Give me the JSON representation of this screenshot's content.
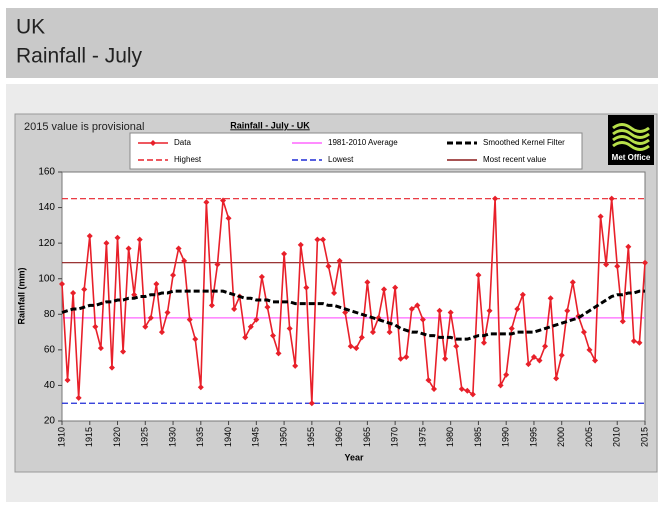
{
  "header": {
    "title": "UK",
    "subtitle": "Rainfall - July"
  },
  "note": "2015 value is provisional",
  "logo": "Met Office",
  "chart_data": {
    "type": "line",
    "title": "Rainfall - July - UK",
    "xlabel": "Year",
    "ylabel": "Rainfall (mm)",
    "x": [
      1910,
      1911,
      1912,
      1913,
      1914,
      1915,
      1916,
      1917,
      1918,
      1919,
      1920,
      1921,
      1922,
      1923,
      1924,
      1925,
      1926,
      1927,
      1928,
      1929,
      1930,
      1931,
      1932,
      1933,
      1934,
      1935,
      1936,
      1937,
      1938,
      1939,
      1940,
      1941,
      1942,
      1943,
      1944,
      1945,
      1946,
      1947,
      1948,
      1949,
      1950,
      1951,
      1952,
      1953,
      1954,
      1955,
      1956,
      1957,
      1958,
      1959,
      1960,
      1961,
      1962,
      1963,
      1964,
      1965,
      1966,
      1967,
      1968,
      1969,
      1970,
      1971,
      1972,
      1973,
      1974,
      1975,
      1976,
      1977,
      1978,
      1979,
      1980,
      1981,
      1982,
      1983,
      1984,
      1985,
      1986,
      1987,
      1988,
      1989,
      1990,
      1991,
      1992,
      1993,
      1994,
      1995,
      1996,
      1997,
      1998,
      1999,
      2000,
      2001,
      2002,
      2003,
      2004,
      2005,
      2006,
      2007,
      2008,
      2009,
      2010,
      2011,
      2012,
      2013,
      2014,
      2015
    ],
    "series": [
      {
        "name": "Data",
        "color": "#e8202a",
        "style": "solid",
        "markers": true,
        "values": [
          97,
          43,
          92,
          33,
          94,
          124,
          73,
          61,
          120,
          50,
          123,
          59,
          117,
          91,
          122,
          73,
          78,
          97,
          70,
          81,
          102,
          117,
          110,
          77,
          66,
          39,
          143,
          85,
          108,
          144,
          134,
          83,
          90,
          67,
          73,
          77,
          101,
          84,
          68,
          58,
          114,
          72,
          51,
          119,
          95,
          30,
          122,
          122,
          107,
          92,
          110,
          81,
          62,
          61,
          67,
          98,
          70,
          78,
          94,
          70,
          95,
          55,
          56,
          83,
          85,
          77,
          43,
          38,
          82,
          55,
          81,
          62,
          38,
          37,
          35,
          102,
          64,
          82,
          145,
          40,
          46,
          72,
          83,
          91,
          52,
          56,
          54,
          62,
          89,
          44,
          57,
          82,
          98,
          79,
          70,
          60,
          54,
          135,
          108,
          145,
          107,
          76,
          118,
          65,
          64,
          109
        ]
      },
      {
        "name": "Smoothed Kernel Filter",
        "color": "#000000",
        "style": "dashed",
        "markers": false,
        "values": [
          81,
          82,
          83,
          83,
          84,
          85,
          85,
          86,
          87,
          87,
          88,
          88,
          89,
          89,
          90,
          90,
          91,
          91,
          92,
          92,
          93,
          93,
          93,
          93,
          93,
          93,
          93,
          93,
          93,
          93,
          92,
          91,
          90,
          89,
          89,
          88,
          88,
          88,
          87,
          87,
          87,
          87,
          86,
          86,
          86,
          86,
          86,
          86,
          85,
          85,
          84,
          83,
          82,
          81,
          80,
          79,
          78,
          77,
          76,
          75,
          74,
          72,
          71,
          70,
          70,
          69,
          68,
          68,
          67,
          67,
          67,
          66,
          66,
          66,
          67,
          68,
          68,
          69,
          69,
          69,
          69,
          69,
          70,
          70,
          70,
          70,
          71,
          72,
          73,
          74,
          75,
          76,
          77,
          78,
          80,
          82,
          84,
          86,
          88,
          90,
          91,
          91,
          92,
          92,
          93,
          93
        ]
      }
    ],
    "reference_lines": [
      {
        "name": "1981-2010 Average",
        "value": 78,
        "color": "#ff66ff",
        "style": "solid"
      },
      {
        "name": "Highest",
        "value": 145,
        "color": "#e8202a",
        "style": "dashed"
      },
      {
        "name": "Lowest",
        "value": 30,
        "color": "#1f2bd6",
        "style": "dashed"
      },
      {
        "name": "Most recent value",
        "value": 109,
        "color": "#8b1a1a",
        "style": "solid"
      }
    ],
    "xlim": [
      1910,
      2015
    ],
    "xticks": [
      1910,
      1915,
      1920,
      1925,
      1930,
      1935,
      1940,
      1945,
      1950,
      1955,
      1960,
      1965,
      1970,
      1975,
      1980,
      1985,
      1990,
      1995,
      2000,
      2005,
      2010,
      2015
    ],
    "ylim": [
      20,
      160
    ],
    "yticks": [
      20,
      40,
      60,
      80,
      100,
      120,
      140,
      160
    ],
    "grid": false
  }
}
